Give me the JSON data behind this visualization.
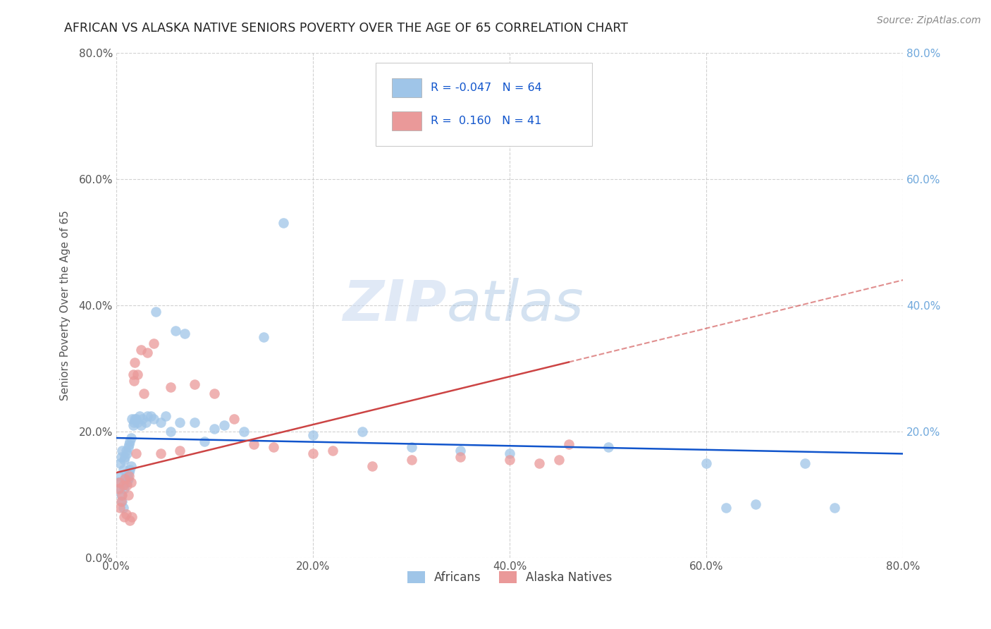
{
  "title": "AFRICAN VS ALASKA NATIVE SENIORS POVERTY OVER THE AGE OF 65 CORRELATION CHART",
  "source": "Source: ZipAtlas.com",
  "ylabel": "Seniors Poverty Over the Age of 65",
  "xlim": [
    0.0,
    0.8
  ],
  "ylim": [
    0.0,
    0.8
  ],
  "xticks": [
    0.0,
    0.2,
    0.4,
    0.6,
    0.8
  ],
  "yticks": [
    0.0,
    0.2,
    0.4,
    0.6,
    0.8
  ],
  "xticklabels": [
    "0.0%",
    "20.0%",
    "40.0%",
    "60.0%",
    "80.0%"
  ],
  "yticklabels": [
    "0.0%",
    "20.0%",
    "40.0%",
    "60.0%",
    "80.0%"
  ],
  "right_yticklabels": [
    "20.0%",
    "40.0%",
    "60.0%",
    "80.0%"
  ],
  "right_yticks": [
    0.2,
    0.4,
    0.6,
    0.8
  ],
  "africans_color": "#9fc5e8",
  "alaska_color": "#ea9999",
  "africans_line_color": "#1155cc",
  "alaska_line_color": "#cc4444",
  "legend_text_color": "#1155cc",
  "title_fontsize": 13,
  "watermark": "ZIPatlas",
  "africans_x": [
    0.002,
    0.003,
    0.004,
    0.004,
    0.005,
    0.005,
    0.006,
    0.006,
    0.007,
    0.007,
    0.008,
    0.008,
    0.009,
    0.009,
    0.01,
    0.01,
    0.011,
    0.011,
    0.012,
    0.012,
    0.013,
    0.013,
    0.014,
    0.014,
    0.015,
    0.015,
    0.016,
    0.017,
    0.018,
    0.019,
    0.02,
    0.022,
    0.024,
    0.025,
    0.027,
    0.03,
    0.032,
    0.035,
    0.038,
    0.04,
    0.045,
    0.05,
    0.055,
    0.06,
    0.065,
    0.07,
    0.08,
    0.09,
    0.1,
    0.11,
    0.13,
    0.15,
    0.17,
    0.2,
    0.25,
    0.3,
    0.35,
    0.4,
    0.5,
    0.6,
    0.62,
    0.65,
    0.7,
    0.73
  ],
  "africans_y": [
    0.12,
    0.13,
    0.11,
    0.15,
    0.1,
    0.16,
    0.09,
    0.17,
    0.08,
    0.14,
    0.11,
    0.155,
    0.125,
    0.16,
    0.13,
    0.17,
    0.12,
    0.165,
    0.125,
    0.175,
    0.135,
    0.18,
    0.14,
    0.185,
    0.145,
    0.19,
    0.22,
    0.21,
    0.215,
    0.22,
    0.22,
    0.215,
    0.225,
    0.21,
    0.22,
    0.215,
    0.225,
    0.225,
    0.22,
    0.39,
    0.215,
    0.225,
    0.2,
    0.36,
    0.215,
    0.355,
    0.215,
    0.185,
    0.205,
    0.21,
    0.2,
    0.35,
    0.53,
    0.195,
    0.2,
    0.175,
    0.17,
    0.165,
    0.175,
    0.15,
    0.08,
    0.085,
    0.15,
    0.08
  ],
  "alaska_x": [
    0.002,
    0.003,
    0.004,
    0.005,
    0.006,
    0.007,
    0.008,
    0.009,
    0.01,
    0.011,
    0.012,
    0.013,
    0.014,
    0.015,
    0.016,
    0.017,
    0.018,
    0.019,
    0.02,
    0.022,
    0.025,
    0.028,
    0.032,
    0.038,
    0.045,
    0.055,
    0.065,
    0.08,
    0.1,
    0.12,
    0.14,
    0.16,
    0.2,
    0.22,
    0.26,
    0.3,
    0.35,
    0.4,
    0.43,
    0.45,
    0.46
  ],
  "alaska_y": [
    0.11,
    0.12,
    0.08,
    0.09,
    0.1,
    0.115,
    0.065,
    0.125,
    0.07,
    0.115,
    0.1,
    0.13,
    0.06,
    0.12,
    0.065,
    0.29,
    0.28,
    0.31,
    0.165,
    0.29,
    0.33,
    0.26,
    0.325,
    0.34,
    0.165,
    0.27,
    0.17,
    0.275,
    0.26,
    0.22,
    0.18,
    0.175,
    0.165,
    0.17,
    0.145,
    0.155,
    0.16,
    0.155,
    0.15,
    0.155,
    0.18
  ]
}
